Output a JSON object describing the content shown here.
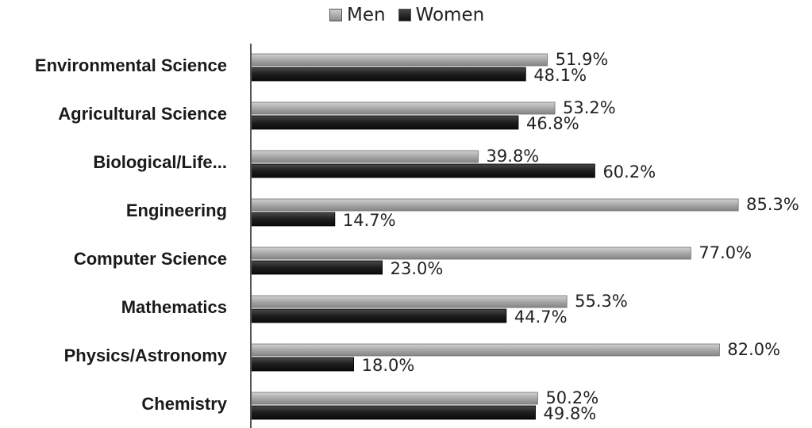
{
  "legend": {
    "men": "Men",
    "women": "Women"
  },
  "colors": {
    "men": "#a8a8a8",
    "women": "#1e1e1e",
    "axis": "#555555"
  },
  "chart_data": {
    "type": "bar",
    "orientation": "horizontal",
    "categories": [
      "Environmental Science",
      "Agricultural Science",
      "Biological/Life...",
      "Engineering",
      "Computer Science",
      "Mathematics",
      "Physics/Astronomy",
      "Chemistry"
    ],
    "series": [
      {
        "name": "Men",
        "values": [
          51.9,
          53.2,
          39.8,
          85.3,
          77.0,
          55.3,
          82.0,
          50.2
        ],
        "labels": [
          "51.9%",
          "53.2%",
          "39.8%",
          "85.3%",
          "77.0%",
          "55.3%",
          "82.0%",
          "50.2%"
        ]
      },
      {
        "name": "Women",
        "values": [
          48.1,
          46.8,
          60.2,
          14.7,
          23.0,
          44.7,
          18.0,
          49.8
        ],
        "labels": [
          "48.1%",
          "46.8%",
          "60.2%",
          "14.7%",
          "23.0%",
          "44.7%",
          "18.0%",
          "49.8%"
        ]
      }
    ],
    "xlim": [
      0,
      100
    ],
    "legend_position": "top-center",
    "grid": false
  }
}
